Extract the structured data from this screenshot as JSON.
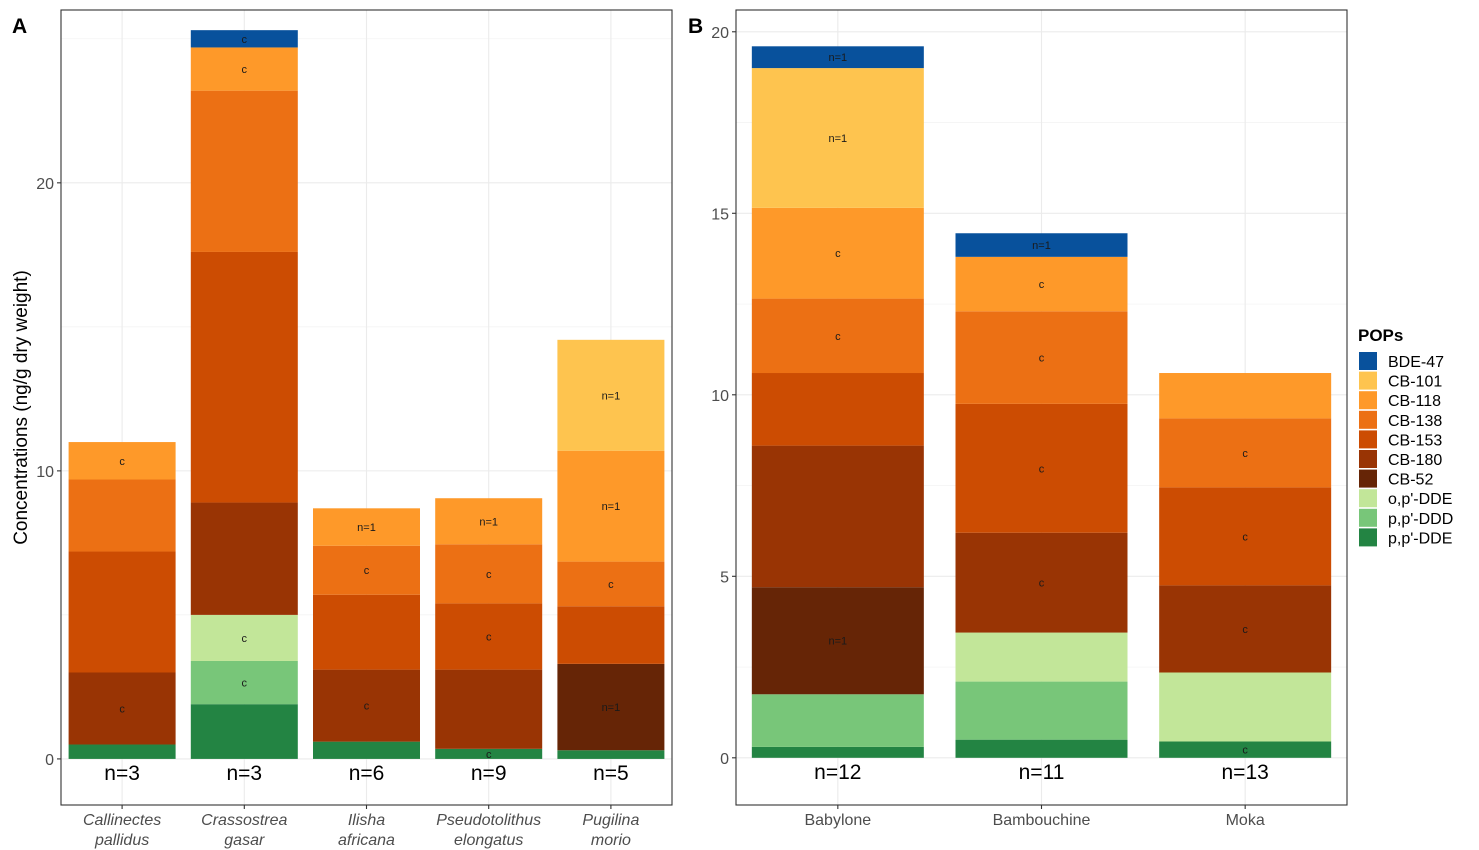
{
  "figure": {
    "legend": {
      "title": "POPs",
      "items": [
        {
          "name": "BDE-47",
          "color": "#08519c"
        },
        {
          "name": "CB-101",
          "color": "#fec44f"
        },
        {
          "name": "CB-118",
          "color": "#fe9929"
        },
        {
          "name": "CB-138",
          "color": "#ec7014"
        },
        {
          "name": "CB-153",
          "color": "#cc4c02"
        },
        {
          "name": "CB-180",
          "color": "#993404"
        },
        {
          "name": "CB-52",
          "color": "#662506"
        },
        {
          "name": "o,p'-DDE",
          "color": "#c2e699"
        },
        {
          "name": "p,p'-DDD",
          "color": "#78c679"
        },
        {
          "name": "p,p'-DDE",
          "color": "#238443"
        }
      ]
    }
  },
  "chart_data": [
    {
      "type": "bar",
      "panel_label": "A",
      "ylabel": "Concentrations (ng/g dry weight)",
      "ylim": [
        -1.6,
        26
      ],
      "yticks": [
        0,
        10,
        20
      ],
      "grid": true,
      "categories": [
        [
          "Callinectes",
          "pallidus"
        ],
        [
          "Crassostrea",
          "gasar"
        ],
        [
          "Ilisha",
          "africana"
        ],
        [
          "Pseudotolithus",
          "elongatus"
        ],
        [
          "Pugilina",
          "morio"
        ]
      ],
      "category_italic": true,
      "counts": [
        "n=3",
        "n=3",
        "n=6",
        "n=9",
        "n=5"
      ],
      "stacks": [
        [
          {
            "pop": "p,p'-DDE",
            "value": 0.5,
            "label": ""
          },
          {
            "pop": "CB-180",
            "value": 2.5,
            "label": "c"
          },
          {
            "pop": "CB-153",
            "value": 4.2,
            "label": ""
          },
          {
            "pop": "CB-138",
            "value": 2.5,
            "label": ""
          },
          {
            "pop": "CB-118",
            "value": 1.3,
            "label": "c"
          }
        ],
        [
          {
            "pop": "p,p'-DDE",
            "value": 1.9,
            "label": ""
          },
          {
            "pop": "p,p'-DDD",
            "value": 1.5,
            "label": "c"
          },
          {
            "pop": "o,p'-DDE",
            "value": 1.6,
            "label": "c"
          },
          {
            "pop": "CB-180",
            "value": 3.9,
            "label": ""
          },
          {
            "pop": "CB-153",
            "value": 8.7,
            "label": ""
          },
          {
            "pop": "CB-138",
            "value": 5.6,
            "label": ""
          },
          {
            "pop": "CB-118",
            "value": 1.5,
            "label": "c"
          },
          {
            "pop": "BDE-47",
            "value": 0.6,
            "label": "c"
          }
        ],
        [
          {
            "pop": "p,p'-DDE",
            "value": 0.6,
            "label": ""
          },
          {
            "pop": "CB-180",
            "value": 2.5,
            "label": "c"
          },
          {
            "pop": "CB-153",
            "value": 2.6,
            "label": ""
          },
          {
            "pop": "CB-138",
            "value": 1.7,
            "label": "c"
          },
          {
            "pop": "CB-118",
            "value": 1.3,
            "label": "n=1"
          }
        ],
        [
          {
            "pop": "p,p'-DDE",
            "value": 0.35,
            "label": "c"
          },
          {
            "pop": "CB-180",
            "value": 2.75,
            "label": ""
          },
          {
            "pop": "CB-153",
            "value": 2.3,
            "label": "c"
          },
          {
            "pop": "CB-138",
            "value": 2.05,
            "label": "c"
          },
          {
            "pop": "CB-118",
            "value": 1.6,
            "label": "n=1"
          }
        ],
        [
          {
            "pop": "p,p'-DDE",
            "value": 0.3,
            "label": ""
          },
          {
            "pop": "CB-52",
            "value": 3.0,
            "label": "n=1"
          },
          {
            "pop": "CB-153",
            "value": 2.0,
            "label": ""
          },
          {
            "pop": "CB-138",
            "value": 1.55,
            "label": "c"
          },
          {
            "pop": "CB-118",
            "value": 3.85,
            "label": "n=1"
          },
          {
            "pop": "CB-101",
            "value": 3.85,
            "label": "n=1"
          }
        ]
      ]
    },
    {
      "type": "bar",
      "panel_label": "B",
      "ylim": [
        -1.3,
        20.6
      ],
      "yticks": [
        0,
        5,
        10,
        15,
        20
      ],
      "grid": true,
      "categories": [
        [
          "Babylone"
        ],
        [
          "Bambouchine"
        ],
        [
          "Moka"
        ]
      ],
      "category_italic": false,
      "counts": [
        "n=12",
        "n=11",
        "n=13"
      ],
      "stacks": [
        [
          {
            "pop": "p,p'-DDE",
            "value": 0.3,
            "label": ""
          },
          {
            "pop": "p,p'-DDD",
            "value": 1.45,
            "label": ""
          },
          {
            "pop": "CB-52",
            "value": 2.95,
            "label": "n=1"
          },
          {
            "pop": "CB-180",
            "value": 3.9,
            "label": ""
          },
          {
            "pop": "CB-153",
            "value": 2.0,
            "label": ""
          },
          {
            "pop": "CB-138",
            "value": 2.05,
            "label": "c"
          },
          {
            "pop": "CB-118",
            "value": 2.5,
            "label": "c"
          },
          {
            "pop": "CB-101",
            "value": 3.85,
            "label": "n=1"
          },
          {
            "pop": "BDE-47",
            "value": 0.6,
            "label": "n=1"
          }
        ],
        [
          {
            "pop": "p,p'-DDE",
            "value": 0.5,
            "label": ""
          },
          {
            "pop": "p,p'-DDD",
            "value": 1.6,
            "label": ""
          },
          {
            "pop": "o,p'-DDE",
            "value": 1.35,
            "label": ""
          },
          {
            "pop": "CB-180",
            "value": 2.75,
            "label": "c"
          },
          {
            "pop": "CB-153",
            "value": 3.55,
            "label": "c"
          },
          {
            "pop": "CB-138",
            "value": 2.55,
            "label": "c"
          },
          {
            "pop": "CB-118",
            "value": 1.5,
            "label": "c"
          },
          {
            "pop": "BDE-47",
            "value": 0.65,
            "label": "n=1"
          }
        ],
        [
          {
            "pop": "p,p'-DDE",
            "value": 0.45,
            "label": "c"
          },
          {
            "pop": "o,p'-DDE",
            "value": 1.9,
            "label": ""
          },
          {
            "pop": "CB-180",
            "value": 2.4,
            "label": "c"
          },
          {
            "pop": "CB-153",
            "value": 2.7,
            "label": "c"
          },
          {
            "pop": "CB-138",
            "value": 1.9,
            "label": "c"
          },
          {
            "pop": "CB-118",
            "value": 1.25,
            "label": ""
          }
        ]
      ]
    }
  ]
}
